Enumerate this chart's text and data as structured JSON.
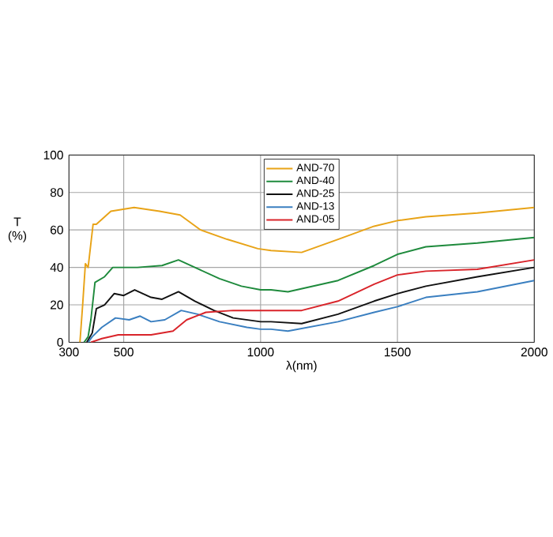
{
  "chart_data": {
    "type": "line",
    "xlabel": "λ(nm)",
    "ylabel": "T (%)",
    "xlim": [
      300,
      2000
    ],
    "ylim": [
      0,
      100
    ],
    "xticks": [
      300,
      500,
      1000,
      1500,
      2000
    ],
    "yticks": [
      0,
      20,
      40,
      60,
      80,
      100
    ],
    "grid": true,
    "legend": "top",
    "line_style": "solid",
    "marker": "none",
    "series": [
      {
        "name": "AND-70",
        "color": "#e8a317",
        "x": [
          340,
          350,
          360,
          370,
          388,
          400,
          453,
          538,
          631,
          706,
          781,
          878,
          990,
          1038,
          1150,
          1283,
          1415,
          1500,
          1604,
          1792,
          2000
        ],
        "values": [
          0,
          20,
          42,
          40,
          63,
          63,
          70,
          72,
          70,
          68,
          60,
          55,
          50,
          49,
          48,
          55,
          62,
          65,
          67,
          69,
          72
        ]
      },
      {
        "name": "AND-40",
        "color": "#1e8a3c",
        "x": [
          355,
          370,
          380,
          395,
          430,
          460,
          550,
          640,
          700,
          760,
          850,
          930,
          1000,
          1038,
          1100,
          1283,
          1415,
          1500,
          1604,
          1792,
          2000
        ],
        "values": [
          0,
          3,
          12,
          32,
          35,
          40,
          40,
          41,
          44,
          40,
          34,
          30,
          28,
          28,
          27,
          33,
          41,
          47,
          51,
          53,
          56
        ]
      },
      {
        "name": "AND-25",
        "color": "#111111",
        "x": [
          365,
          385,
          400,
          430,
          465,
          500,
          540,
          600,
          640,
          700,
          760,
          830,
          900,
          1000,
          1038,
          1150,
          1283,
          1415,
          1500,
          1604,
          1792,
          2000
        ],
        "values": [
          0,
          5,
          18,
          20,
          26,
          25,
          28,
          24,
          23,
          27,
          22,
          17,
          13,
          11,
          11,
          10,
          15,
          22,
          26,
          30,
          35,
          40
        ]
      },
      {
        "name": "AND-13",
        "color": "#3a7fc0",
        "x": [
          370,
          385,
          420,
          470,
          520,
          560,
          600,
          650,
          710,
          770,
          850,
          950,
          1000,
          1038,
          1100,
          1283,
          1415,
          1500,
          1604,
          1792,
          2000
        ],
        "values": [
          0,
          3,
          8,
          13,
          12,
          14,
          11,
          12,
          17,
          15,
          11,
          8,
          7,
          7,
          6,
          11,
          16,
          19,
          24,
          27,
          33
        ]
      },
      {
        "name": "AND-05",
        "color": "#d9242a",
        "x": [
          380,
          420,
          480,
          600,
          680,
          730,
          800,
          900,
          1000,
          1038,
          1150,
          1283,
          1415,
          1500,
          1604,
          1792,
          2000
        ],
        "values": [
          0,
          2,
          4,
          4,
          6,
          12,
          16,
          17,
          17,
          17,
          17,
          22,
          31,
          36,
          38,
          39,
          44
        ]
      }
    ]
  }
}
